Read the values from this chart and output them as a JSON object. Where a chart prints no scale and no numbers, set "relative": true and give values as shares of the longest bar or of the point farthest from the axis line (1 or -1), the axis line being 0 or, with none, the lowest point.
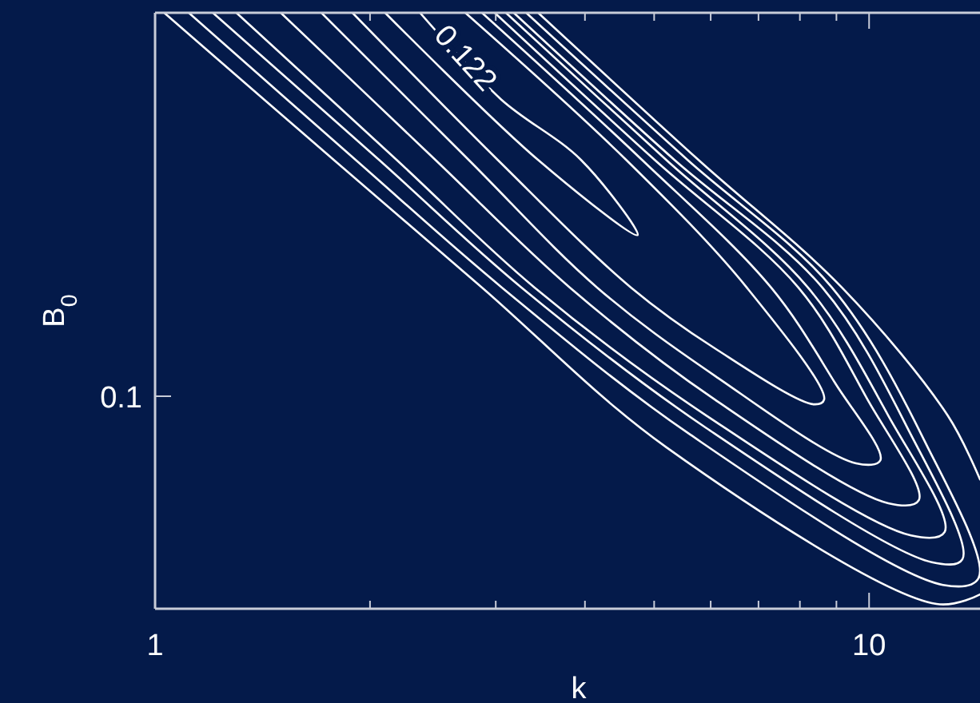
{
  "chart_data": {
    "type": "line",
    "xlabel": "k",
    "ylabel": "B$_{0}$",
    "log": "x",
    "relative": true,
    "grid": false,
    "marker": "none",
    "line_style": "solid",
    "xlim": [
      1,
      14.3
    ],
    "xticks": [
      1,
      {
        "value": 2,
        "label": null
      },
      {
        "value": 3,
        "label": null
      },
      {
        "value": 4,
        "label": null
      },
      {
        "value": 5,
        "label": null
      },
      {
        "value": 6,
        "label": null
      },
      {
        "value": 7,
        "label": null
      },
      {
        "value": 8,
        "label": null
      },
      {
        "value": 9,
        "label": null
      },
      10
    ],
    "annotations": [
      {
        "text": "0.122",
        "x": 2.71,
        "y": 0.922
      },
      "0.1"
    ],
    "series": [
      {
        "color": "#ffffff",
        "x": [
          2.1,
          3.44,
          4.74,
          3.95,
          3.05,
          2.35
        ],
        "values": [
          1,
          0.753,
          0.627,
          0.753,
          0.855,
          1
        ]
      },
      {
        "color": "#ffffff",
        "x": [
          1.89,
          3.02,
          4.64,
          6.08,
          8.38,
          8.65,
          6.74,
          4.57,
          2.72
        ],
        "values": [
          1,
          0.753,
          0.539,
          0.437,
          0.343,
          0.351,
          0.539,
          0.753,
          1
        ]
      },
      {
        "color": "#ffffff",
        "x": [
          1.71,
          2.75,
          4.16,
          6.08,
          9.59,
          10.37,
          8.97,
          7.29,
          4.81,
          2.87
        ],
        "values": [
          1,
          0.753,
          0.539,
          0.391,
          0.244,
          0.249,
          0.378,
          0.539,
          0.753,
          1
        ]
      },
      {
        "color": "#ffffff",
        "x": [
          1.5,
          2.47,
          3.81,
          6.08,
          10.64,
          11.74,
          9.95,
          7.96,
          5.01,
          2.99
        ],
        "values": [
          1,
          0.753,
          0.539,
          0.351,
          0.177,
          0.182,
          0.351,
          0.539,
          0.753,
          1
        ]
      },
      {
        "color": "#ffffff",
        "x": [
          1.3,
          2.18,
          3.4,
          5.92,
          11.45,
          12.76,
          10.64,
          8.21,
          5.2,
          3.1
        ],
        "values": [
          1,
          0.753,
          0.539,
          0.324,
          0.123,
          0.129,
          0.324,
          0.539,
          0.753,
          1
        ]
      },
      {
        "color": "#ffffff",
        "x": [
          1.205,
          2.06,
          3.26,
          5.92,
          12.24,
          13.51,
          11.32,
          8.6,
          5.34,
          3.18
        ],
        "values": [
          1,
          0.753,
          0.539,
          0.303,
          0.078,
          0.083,
          0.303,
          0.539,
          0.753,
          1
        ]
      },
      {
        "color": "#ffffff",
        "x": [
          1.115,
          1.91,
          3.06,
          5.62,
          12.69,
          14.23,
          11.93,
          8.87,
          5.57,
          3.31
        ],
        "values": [
          1,
          0.753,
          0.539,
          0.292,
          0.04,
          0.051,
          0.284,
          0.539,
          0.753,
          1
        ]
      },
      {
        "color": "#ffffff",
        "x": [
          1.03,
          1.78,
          2.87,
          5.2,
          12.43,
          14.3,
          null,
          14.3,
          12.89,
          9.16,
          5.77,
          3.44
        ],
        "values": [
          1,
          0.753,
          0.539,
          0.271,
          0.008,
          0.024,
          null,
          0.217,
          0.324,
          0.539,
          0.753,
          1
        ]
      }
    ]
  }
}
